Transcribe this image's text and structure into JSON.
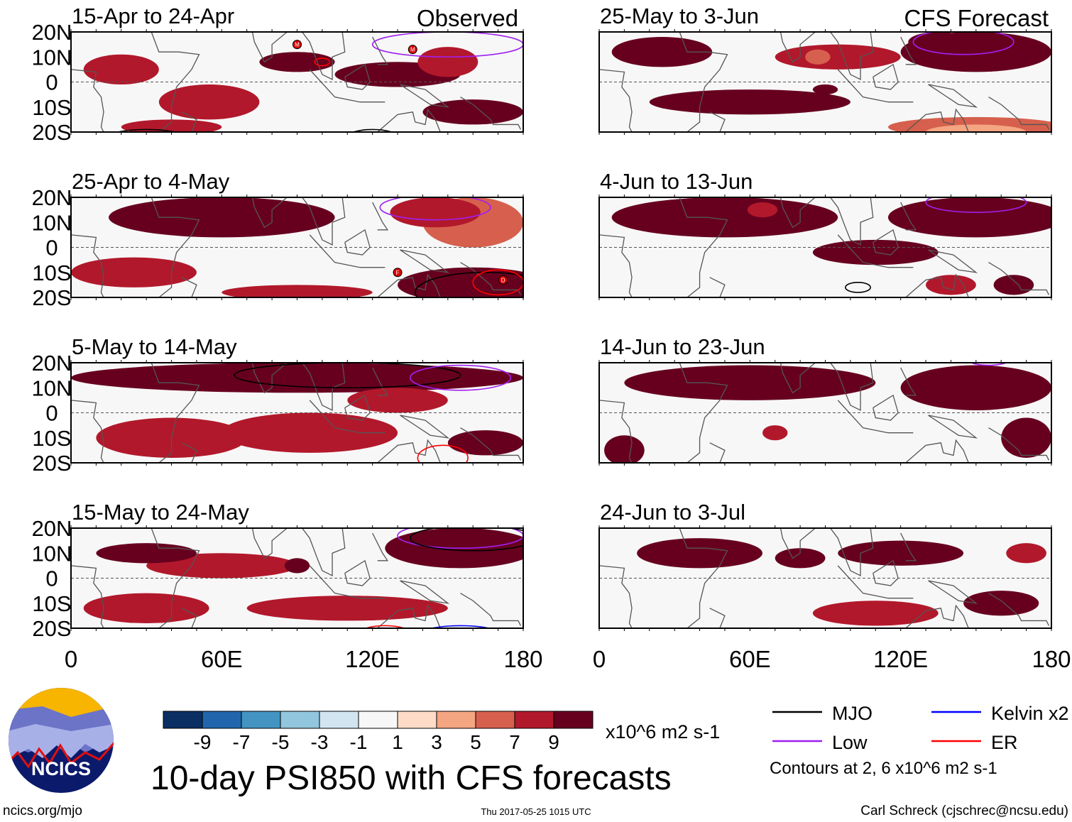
{
  "figure": {
    "title": "10-day PSI850 with CFS forecasts",
    "observed_label": "Observed",
    "forecast_label": "CFS Forecast",
    "site": "ncics.org/mjo",
    "timestamp": "Thu 2017-05-25 1015 UTC",
    "author": "Carl Schreck (cjschrec@ncsu.edu)",
    "logo_text": "NCICS",
    "contour_note": "Contours at 2, 6 x10^6 m2 s-1",
    "units": "x10^6 m2 s-1"
  },
  "axes": {
    "lat_ticks": [
      {
        "v": 20,
        "label": "20N"
      },
      {
        "v": 10,
        "label": "10N"
      },
      {
        "v": 0,
        "label": "0"
      },
      {
        "v": -10,
        "label": "10S"
      },
      {
        "v": -20,
        "label": "20S"
      }
    ],
    "lon_ticks": [
      {
        "v": 0,
        "label": "0"
      },
      {
        "v": 60,
        "label": "60E"
      },
      {
        "v": 120,
        "label": "120E"
      },
      {
        "v": 180,
        "label": "180"
      }
    ],
    "lon_range": [
      0,
      180
    ],
    "lat_range": [
      -20,
      20
    ]
  },
  "colorbar": {
    "labels": [
      "-9",
      "-7",
      "-5",
      "-3",
      "-1",
      "1",
      "3",
      "5",
      "7",
      "9"
    ],
    "colors": [
      "#0b2f63",
      "#2166ac",
      "#4393c3",
      "#92c5de",
      "#d1e5f0",
      "#f7f7f7",
      "#fddbc7",
      "#f4a582",
      "#d6604d",
      "#b2182b",
      "#67001f"
    ]
  },
  "legend": [
    {
      "label": "MJO",
      "color": "#000000"
    },
    {
      "label": "Kelvin x2",
      "color": "#0000ff"
    },
    {
      "label": "Low",
      "color": "#a020f0"
    },
    {
      "label": "ER",
      "color": "#ff0000"
    }
  ],
  "panels": [
    {
      "title": "15-Apr to 24-Apr",
      "col": 0,
      "row": 0,
      "blobs": [
        [
          20,
          5,
          15,
          6,
          4
        ],
        [
          55,
          -8,
          20,
          7,
          4
        ],
        [
          90,
          8,
          15,
          4,
          6
        ],
        [
          130,
          3,
          25,
          5,
          6
        ],
        [
          160,
          -12,
          20,
          5,
          6
        ],
        [
          150,
          8,
          12,
          6,
          4
        ],
        [
          40,
          -18,
          20,
          3,
          4
        ]
      ],
      "contours": [
        [
          150,
          15,
          30,
          5,
          "Low"
        ],
        [
          100,
          8,
          3,
          1.5,
          "ER"
        ],
        [
          30,
          -22,
          15,
          3,
          "MJO"
        ],
        [
          120,
          -22,
          10,
          3,
          "MJO"
        ]
      ],
      "storms": [
        [
          90,
          15,
          "M"
        ],
        [
          136,
          13,
          "M"
        ]
      ]
    },
    {
      "title": "25-May to 3-Jun",
      "col": 1,
      "row": 0,
      "blobs": [
        [
          150,
          12,
          30,
          8,
          6
        ],
        [
          135,
          16,
          12,
          4,
          7
        ],
        [
          95,
          10,
          25,
          5,
          4
        ],
        [
          87,
          10,
          5,
          3,
          3
        ],
        [
          90,
          -3,
          5,
          2,
          7
        ],
        [
          60,
          -8,
          40,
          5,
          6
        ],
        [
          150,
          -18,
          35,
          4,
          3
        ],
        [
          150,
          -20,
          20,
          3,
          2
        ],
        [
          25,
          12,
          20,
          6,
          6
        ]
      ],
      "contours": [
        [
          145,
          16,
          20,
          5,
          "Low"
        ]
      ],
      "storms": []
    },
    {
      "title": "25-Apr to 4-May",
      "col": 0,
      "row": 1,
      "blobs": [
        [
          60,
          12,
          45,
          8,
          6
        ],
        [
          65,
          12,
          8,
          4,
          7
        ],
        [
          160,
          10,
          20,
          10,
          3
        ],
        [
          160,
          -15,
          30,
          7,
          7
        ],
        [
          170,
          -14,
          10,
          5,
          8
        ],
        [
          25,
          -10,
          25,
          6,
          4
        ],
        [
          90,
          -18,
          30,
          3,
          4
        ],
        [
          145,
          14,
          18,
          6,
          4
        ]
      ],
      "contours": [
        [
          145,
          16,
          22,
          5,
          "Low"
        ],
        [
          165,
          -18,
          28,
          8,
          "MJO"
        ],
        [
          170,
          -14,
          10,
          5,
          "ER"
        ]
      ],
      "storms": [
        [
          130,
          -10,
          "F"
        ],
        [
          172,
          -13,
          "D"
        ]
      ]
    },
    {
      "title": "4-Jun to 13-Jun",
      "col": 1,
      "row": 1,
      "blobs": [
        [
          50,
          12,
          45,
          8,
          6
        ],
        [
          150,
          12,
          35,
          8,
          6
        ],
        [
          110,
          -2,
          25,
          5,
          6
        ],
        [
          65,
          15,
          6,
          3,
          4
        ],
        [
          165,
          -15,
          8,
          4,
          6
        ],
        [
          140,
          -15,
          10,
          4,
          4
        ]
      ],
      "contours": [
        [
          150,
          18,
          20,
          4,
          "Low"
        ],
        [
          103,
          -16,
          5,
          2,
          "MJO"
        ]
      ],
      "storms": []
    },
    {
      "title": "5-May to 14-May",
      "col": 0,
      "row": 2,
      "blobs": [
        [
          90,
          14,
          90,
          6,
          6
        ],
        [
          70,
          17,
          15,
          3,
          7
        ],
        [
          110,
          16,
          20,
          3,
          7
        ],
        [
          40,
          -10,
          30,
          8,
          4
        ],
        [
          95,
          -8,
          35,
          8,
          4
        ],
        [
          130,
          5,
          20,
          5,
          4
        ],
        [
          165,
          -12,
          15,
          5,
          6
        ]
      ],
      "contours": [
        [
          110,
          15,
          45,
          5,
          "MJO"
        ],
        [
          155,
          14,
          20,
          5,
          "Low"
        ],
        [
          148,
          -18,
          10,
          5,
          "ER"
        ]
      ],
      "storms": []
    },
    {
      "title": "14-Jun to 23-Jun",
      "col": 1,
      "row": 2,
      "blobs": [
        [
          60,
          12,
          50,
          7,
          6
        ],
        [
          150,
          10,
          30,
          9,
          6
        ],
        [
          170,
          -10,
          10,
          8,
          6
        ],
        [
          70,
          -8,
          5,
          3,
          4
        ],
        [
          10,
          -15,
          8,
          6,
          6
        ]
      ],
      "contours": [
        [
          155,
          21,
          8,
          2,
          "Low"
        ]
      ],
      "storms": []
    },
    {
      "title": "15-May to 24-May",
      "col": 0,
      "row": 3,
      "blobs": [
        [
          155,
          12,
          30,
          8,
          6
        ],
        [
          150,
          14,
          15,
          5,
          7
        ],
        [
          60,
          5,
          30,
          5,
          4
        ],
        [
          110,
          -12,
          40,
          5,
          4
        ],
        [
          30,
          -12,
          25,
          6,
          4
        ],
        [
          90,
          5,
          5,
          3,
          5
        ],
        [
          30,
          10,
          20,
          4,
          6
        ]
      ],
      "contours": [
        [
          155,
          17,
          25,
          5,
          "Low"
        ],
        [
          160,
          16,
          25,
          5,
          "MJO"
        ],
        [
          125,
          -22,
          10,
          3,
          "ER"
        ],
        [
          155,
          -22,
          15,
          3,
          "Kelvin x2"
        ]
      ],
      "storms": []
    },
    {
      "title": "24-Jun to 3-Jul",
      "col": 1,
      "row": 3,
      "blobs": [
        [
          40,
          10,
          25,
          6,
          6
        ],
        [
          120,
          10,
          25,
          5,
          6
        ],
        [
          80,
          8,
          10,
          4,
          6
        ],
        [
          170,
          10,
          8,
          4,
          4
        ],
        [
          110,
          -14,
          25,
          5,
          4
        ],
        [
          160,
          -10,
          15,
          5,
          6
        ]
      ],
      "contours": [],
      "storms": []
    }
  ]
}
